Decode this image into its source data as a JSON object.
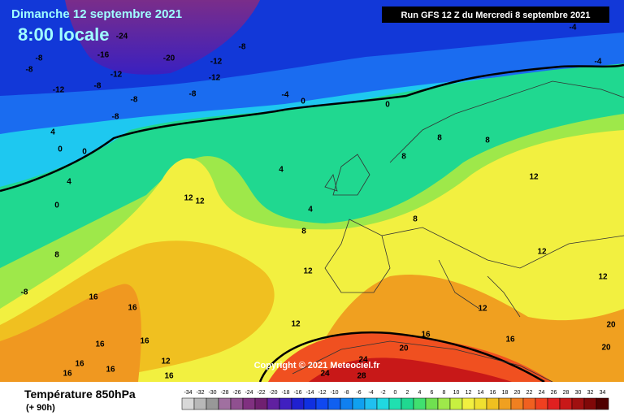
{
  "header": {
    "date": "Dimanche 12 septembre 2021",
    "time": "8:00 locale",
    "run": "Run GFS 12 Z du Mercredi 8 septembre 2021"
  },
  "copyright": "Copyright © 2021 Meteociel.fr",
  "footer": {
    "title": "Température 850hPa",
    "subtitle": "(+ 90h)"
  },
  "map_labels": [
    "-24",
    "-16",
    "-20",
    "-12",
    "-8",
    "-8",
    "-8",
    "-12",
    "-12",
    "-8",
    "-12",
    "-8",
    "-8",
    "-4",
    "0",
    "0",
    "-8",
    "4",
    "0",
    "0",
    "4",
    "0",
    "4",
    "8",
    "8",
    "8",
    "12",
    "12",
    "12",
    "4",
    "8",
    "8",
    "8",
    "12",
    "12",
    "12",
    "16",
    "-8",
    "16",
    "12",
    "12",
    "16",
    "16",
    "16",
    "16",
    "20",
    "20",
    "20",
    "24",
    "24",
    "28",
    "16",
    "16",
    "16",
    "12",
    "16",
    "-4",
    "-4"
  ],
  "scale": {
    "values": [
      -34,
      -32,
      -30,
      -28,
      -26,
      -24,
      -22,
      -20,
      -18,
      -16,
      -14,
      -12,
      -10,
      -8,
      -6,
      -4,
      -2,
      0,
      2,
      4,
      6,
      8,
      10,
      12,
      14,
      16,
      18,
      20,
      22,
      24,
      26,
      28,
      30,
      32,
      34
    ],
    "colors": [
      "#d8d8d8",
      "#b8b8b8",
      "#989898",
      "#a070a0",
      "#905090",
      "#803080",
      "#702070",
      "#6020a0",
      "#4020c0",
      "#2020d0",
      "#1030e0",
      "#1048f0",
      "#1060f0",
      "#1080f0",
      "#10a0f0",
      "#20c0f0",
      "#20d8e0",
      "#20e0b0",
      "#20d890",
      "#40e070",
      "#70e050",
      "#9ee84a",
      "#c8f040",
      "#f2f040",
      "#f0e030",
      "#f0c020",
      "#f0a020",
      "#f08020",
      "#f06020",
      "#f04020",
      "#e02020",
      "#c81818",
      "#a01010",
      "#800808",
      "#500000"
    ]
  }
}
